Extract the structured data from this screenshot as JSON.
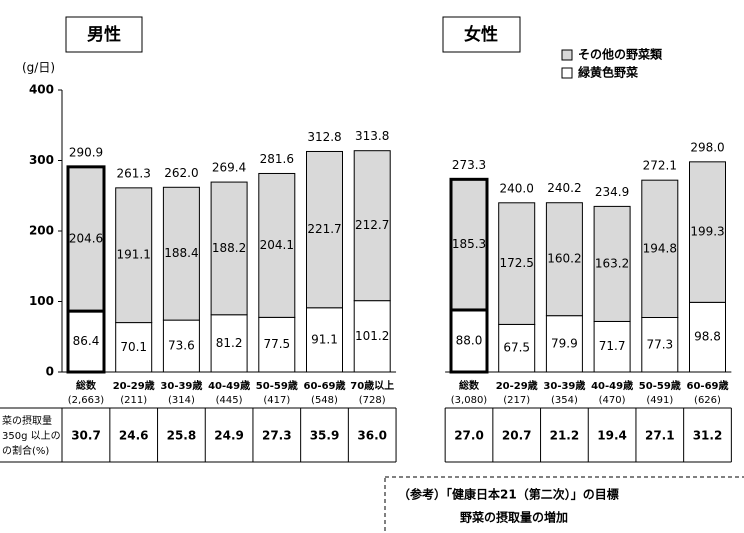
{
  "chart_data": [
    {
      "type": "stacked_bar",
      "title": "男性",
      "ylabel": "(g/日)",
      "ylim": [
        0,
        400
      ],
      "yticks": [
        0,
        100,
        200,
        300,
        400
      ],
      "categories": [
        "総数",
        "20-29歳",
        "30-39歳",
        "40-49歳",
        "50-59歳",
        "60-69歳",
        "70歳以上"
      ],
      "counts": [
        "(2,663)",
        "(211)",
        "(314)",
        "(445)",
        "(417)",
        "(548)",
        "(728)"
      ],
      "series": [
        {
          "name": "緑黄色野菜",
          "color": "#ffffff",
          "values": [
            86.4,
            70.1,
            73.6,
            81.2,
            77.5,
            91.1,
            101.2
          ],
          "value_labels": [
            "86.4",
            "70.1",
            "73.6",
            "81.2",
            "77.5",
            "91.1",
            "101.2"
          ]
        },
        {
          "name": "その他の野菜類",
          "color": "#d9d9d9",
          "values": [
            204.6,
            191.1,
            188.4,
            188.2,
            204.1,
            221.7,
            212.7
          ],
          "value_labels": [
            "204.6",
            "191.1",
            "188.4",
            "188.2",
            "204.1",
            "221.7",
            "212.7"
          ]
        }
      ],
      "totals": [
        "290.9",
        "261.3",
        "262.0",
        "269.4",
        "281.6",
        "312.8",
        "313.8"
      ],
      "table_values": [
        "30.7",
        "24.6",
        "25.8",
        "24.9",
        "27.3",
        "35.9",
        "36.0"
      ]
    },
    {
      "type": "stacked_bar",
      "title": "女性",
      "ylim": [
        0,
        400
      ],
      "categories": [
        "総数",
        "20-29歳",
        "30-39歳",
        "40-49歳",
        "50-59歳",
        "60-69歳"
      ],
      "counts": [
        "(3,080)",
        "(217)",
        "(354)",
        "(470)",
        "(491)",
        "(626)"
      ],
      "series": [
        {
          "values": [
            88.0,
            67.5,
            79.9,
            71.7,
            77.3,
            98.8
          ],
          "value_labels": [
            "88.0",
            "67.5",
            "79.9",
            "71.7",
            "77.3",
            "98.8"
          ]
        },
        {
          "values": [
            185.3,
            172.5,
            160.2,
            163.2,
            194.8,
            199.3
          ],
          "value_labels": [
            "185.3",
            "172.5",
            "160.2",
            "163.2",
            "194.8",
            "199.3"
          ]
        }
      ],
      "totals": [
        "273.3",
        "240.0",
        "240.2",
        "234.9",
        "272.1",
        "298.0"
      ],
      "table_values": [
        "27.0",
        "20.7",
        "21.2",
        "19.4",
        "27.1",
        "31.2"
      ]
    }
  ],
  "table_row_label": [
    "菜の摂取量",
    "350g 以上の",
    "の割合(%)"
  ],
  "note": [
    "（参考）「健康日本21（第二次）」の目標",
    "野菜の摂取量の増加"
  ]
}
